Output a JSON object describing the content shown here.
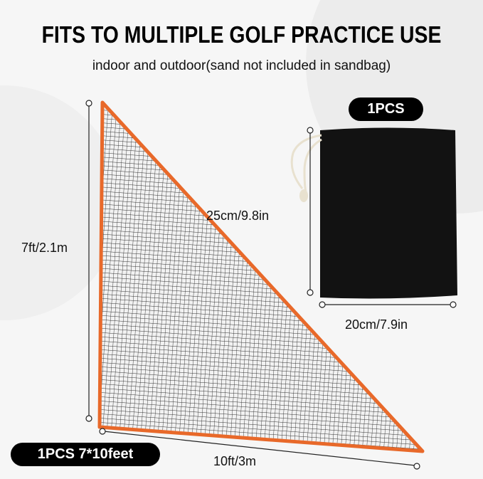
{
  "header": {
    "title": "FITS TO MULTIPLE GOLF PRACTICE USE",
    "subtitle": "indoor and outdoor(sand not included in sandbag)"
  },
  "net": {
    "badge": "1PCS 7*10feet",
    "height_label": "7ft/2.1m",
    "width_label": "10ft/3m",
    "border_color": "#e8692a"
  },
  "sandbag": {
    "badge": "1PCS",
    "height_label": "25cm/9.8in",
    "width_label": "20cm/7.9in",
    "color": "#111111"
  }
}
